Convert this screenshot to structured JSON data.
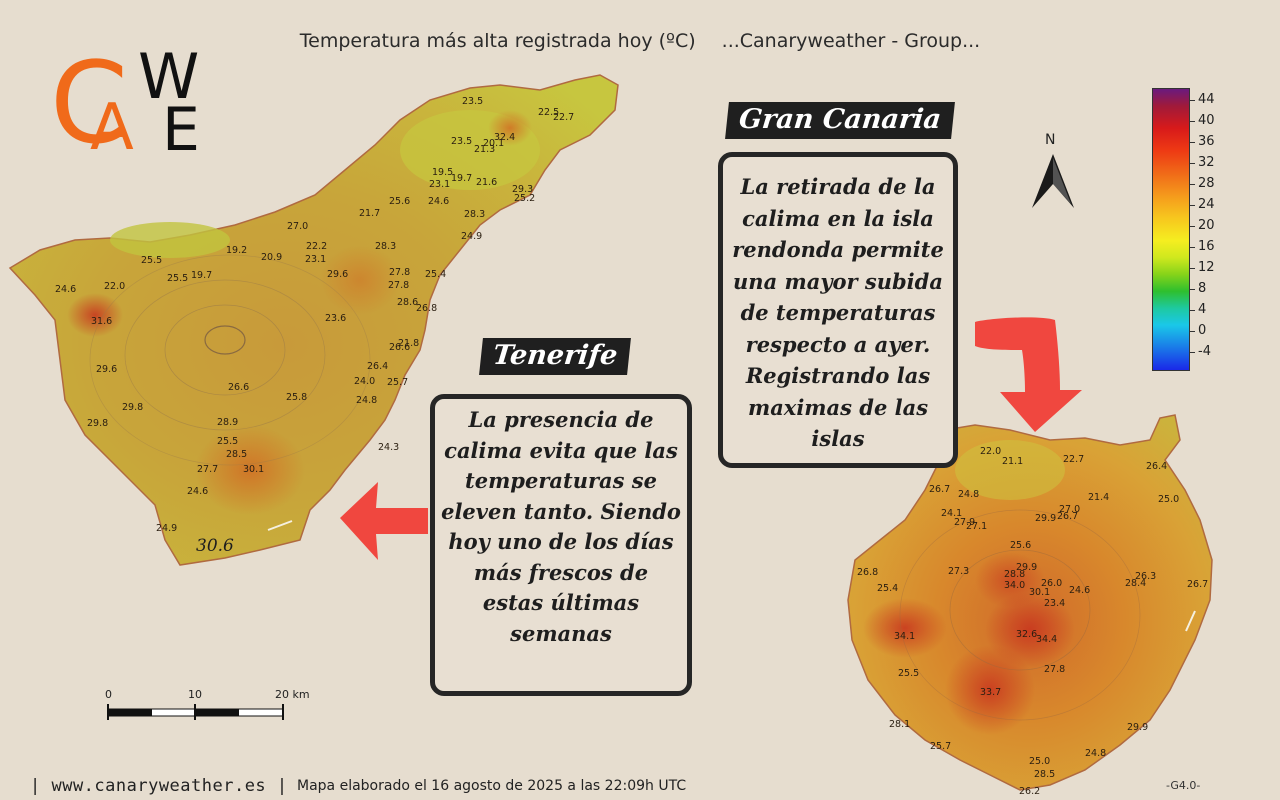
{
  "title": "Temperatura más alta registrada hoy (ºC)",
  "group": "...Canaryweather - Group...",
  "logo": {
    "letters": [
      "C",
      "A",
      "W",
      "E"
    ]
  },
  "labels": {
    "tenerife": "Tenerife",
    "gran_canaria": "Gran Canaria"
  },
  "notes": {
    "tenerife": [
      "La presencia de",
      "calima evita que las",
      "temperaturas se",
      "eleven tanto. Siendo",
      "hoy uno de los días",
      "más frescos de",
      "estas últimas",
      "semanas"
    ],
    "gran_canaria": [
      "La retirada de la",
      "calima en la isla",
      "rendonda permite",
      "una mayor subida",
      "de temperaturas",
      "respecto a ayer.",
      "Registrando las",
      "maximas de las",
      "islas"
    ]
  },
  "legend": {
    "ticks": [
      "44",
      "40",
      "36",
      "32",
      "28",
      "24",
      "20",
      "16",
      "12",
      "8",
      "4",
      "0",
      "-4"
    ],
    "colors": [
      "#6a1a7e",
      "#d81a1a",
      "#f06a18",
      "#f7c71e",
      "#86d31a",
      "#1ec9a0",
      "#1a28e8"
    ]
  },
  "north": "N",
  "scale": {
    "labels": [
      "0",
      "10",
      "20 km"
    ]
  },
  "tenerife_values": [
    "23.5",
    "22.5",
    "22.7",
    "23.5",
    "20.1",
    "32.4",
    "21.3",
    "19.5",
    "19.7",
    "21.6",
    "23.1",
    "29.3",
    "25.2",
    "25.6",
    "24.6",
    "28.3",
    "21.7",
    "27.0",
    "24.9",
    "19.2",
    "20.9",
    "22.2",
    "23.1",
    "28.3",
    "25.5",
    "25.5",
    "19.7",
    "29.6",
    "27.8",
    "25.4",
    "24.6",
    "22.0",
    "27.8",
    "28.6",
    "26.8",
    "31.6",
    "23.6",
    "21.8",
    "26.6",
    "29.6",
    "26.4",
    "24.0",
    "25.7",
    "26.6",
    "25.8",
    "24.8",
    "29.8",
    "29.8",
    "28.9",
    "25.5",
    "24.3",
    "28.5",
    "27.7",
    "30.1",
    "24.6",
    "24.9"
  ],
  "tenerife_big_value": "30.6",
  "gran_canaria_values": [
    "22.0",
    "21.1",
    "22.7",
    "26.4",
    "26.7",
    "24.8",
    "21.4",
    "25.0",
    "24.1",
    "27.9",
    "27.1",
    "29.9",
    "26.7",
    "27.0",
    "25.6",
    "26.8",
    "27.3",
    "29.9",
    "28.8",
    "34.0",
    "26.0",
    "30.1",
    "24.6",
    "28.4",
    "26.3",
    "26.7",
    "25.4",
    "23.4",
    "34.1",
    "32.6",
    "34.4",
    "25.5",
    "27.8",
    "33.7",
    "28.1",
    "29.9",
    "25.7",
    "24.8",
    "25.0",
    "28.5",
    "26.2"
  ],
  "footer": {
    "site": "| www.canaryweather.es |",
    "made": "Mapa elaborado el 16 agosto de 2025 a las 22:09h UTC",
    "version": "-G4.0-"
  }
}
